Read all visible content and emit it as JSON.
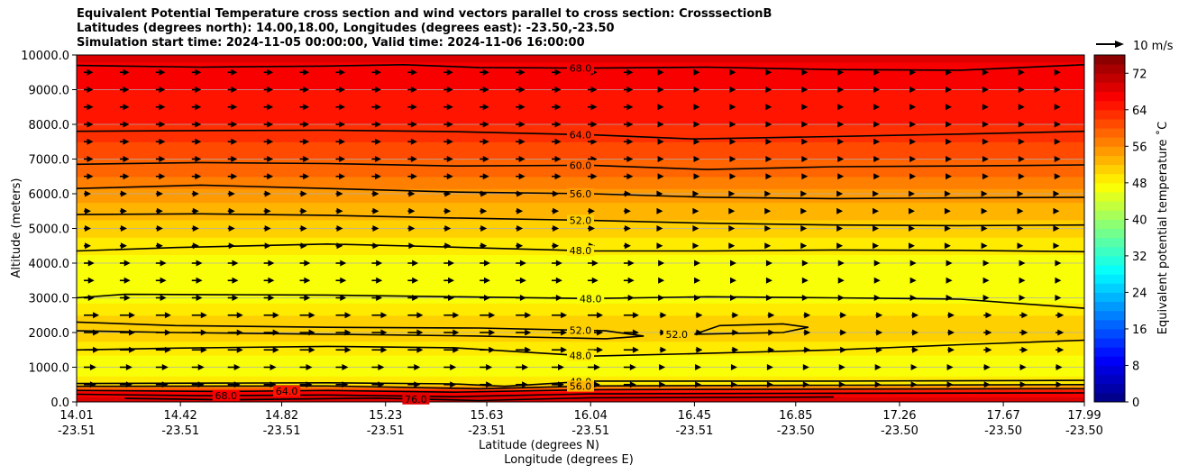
{
  "titles": [
    "Equivalent Potential Temperature cross section and wind vectors parallel to cross section: CrosssectionB",
    "Latitudes (degrees north): 14.00,18.00, Longitudes (degrees east): -23.50,-23.50",
    "Simulation start time: 2024-11-05 00:00:00, Valid time: 2024-11-06 16:00:00"
  ],
  "chart_data": {
    "type": "heatmap",
    "ylabel": "Altitude (meters)",
    "xlabel_lat": "Latitude (degrees N)",
    "xlabel_lon": "Longitude (degrees E)",
    "xlim": [
      14.01,
      17.99
    ],
    "ylim": [
      0,
      10000
    ],
    "grid": "horizontal",
    "x_ticks": [
      {
        "lat": "14.01",
        "lon": "-23.51",
        "v": 14.01
      },
      {
        "lat": "14.42",
        "lon": "-23.51",
        "v": 14.42
      },
      {
        "lat": "14.82",
        "lon": "-23.51",
        "v": 14.82
      },
      {
        "lat": "15.23",
        "lon": "-23.51",
        "v": 15.23
      },
      {
        "lat": "15.63",
        "lon": "-23.51",
        "v": 15.63
      },
      {
        "lat": "16.04",
        "lon": "-23.51",
        "v": 16.04
      },
      {
        "lat": "16.45",
        "lon": "-23.51",
        "v": 16.45
      },
      {
        "lat": "16.85",
        "lon": "-23.50",
        "v": 16.85
      },
      {
        "lat": "17.26",
        "lon": "-23.50",
        "v": 17.26
      },
      {
        "lat": "17.67",
        "lon": "-23.50",
        "v": 17.67
      },
      {
        "lat": "17.99",
        "lon": "-23.50",
        "v": 17.99
      }
    ],
    "y_ticks": [
      "0.0",
      "1000.0",
      "2000.0",
      "3000.0",
      "4000.0",
      "5000.0",
      "6000.0",
      "7000.0",
      "8000.0",
      "9000.0",
      "10000.0"
    ],
    "colorbar": {
      "label": "Equivalent potential temperature $^\\circ$C",
      "label_text": "Equivalent potential temperature ˚C",
      "min": 0,
      "max": 76,
      "step": 2,
      "ticks": [
        "0",
        "8",
        "16",
        "24",
        "32",
        "40",
        "48",
        "56",
        "64",
        "72"
      ]
    },
    "quiver_key": {
      "label": "10 m/s",
      "speed": 10
    },
    "theta_e_profile": [
      {
        "z": 0,
        "v": 70
      },
      {
        "z": 300,
        "v": 66
      },
      {
        "z": 500,
        "v": 50
      },
      {
        "z": 1000,
        "v": 46
      },
      {
        "z": 1500,
        "v": 49
      },
      {
        "z": 2000,
        "v": 51
      },
      {
        "z": 2500,
        "v": 50
      },
      {
        "z": 3000,
        "v": 47
      },
      {
        "z": 4000,
        "v": 47
      },
      {
        "z": 4500,
        "v": 49
      },
      {
        "z": 5000,
        "v": 51
      },
      {
        "z": 5500,
        "v": 53
      },
      {
        "z": 6000,
        "v": 55
      },
      {
        "z": 6500,
        "v": 58
      },
      {
        "z": 7000,
        "v": 60
      },
      {
        "z": 7500,
        "v": 62
      },
      {
        "z": 8000,
        "v": 64
      },
      {
        "z": 9000,
        "v": 66
      },
      {
        "z": 9800,
        "v": 68
      },
      {
        "z": 10000,
        "v": 69
      }
    ],
    "contours": [
      {
        "label": "68.0",
        "label_x": 16.0,
        "pts": [
          [
            14.01,
            9700
          ],
          [
            14.5,
            9650
          ],
          [
            15.0,
            9680
          ],
          [
            15.3,
            9720
          ],
          [
            15.6,
            9640
          ],
          [
            16.04,
            9620
          ],
          [
            16.5,
            9650
          ],
          [
            17.0,
            9580
          ],
          [
            17.5,
            9560
          ],
          [
            17.99,
            9720
          ]
        ]
      },
      {
        "label": "64.0",
        "label_x": 16.0,
        "pts": [
          [
            14.01,
            7800
          ],
          [
            14.5,
            7820
          ],
          [
            15.0,
            7830
          ],
          [
            15.5,
            7790
          ],
          [
            16.04,
            7700
          ],
          [
            16.45,
            7580
          ],
          [
            17.0,
            7650
          ],
          [
            17.5,
            7720
          ],
          [
            17.99,
            7800
          ]
        ]
      },
      {
        "label": "60.0",
        "label_x": 16.0,
        "pts": [
          [
            14.01,
            6850
          ],
          [
            14.5,
            6900
          ],
          [
            15.0,
            6870
          ],
          [
            15.5,
            6800
          ],
          [
            16.04,
            6820
          ],
          [
            16.5,
            6700
          ],
          [
            17.0,
            6780
          ],
          [
            17.5,
            6800
          ],
          [
            17.99,
            6830
          ]
        ]
      },
      {
        "label": "56.0",
        "label_x": 16.0,
        "pts": [
          [
            14.01,
            6150
          ],
          [
            14.5,
            6250
          ],
          [
            15.0,
            6150
          ],
          [
            15.5,
            6050
          ],
          [
            16.04,
            6000
          ],
          [
            16.5,
            5900
          ],
          [
            17.0,
            5860
          ],
          [
            17.5,
            5880
          ],
          [
            17.99,
            5900
          ]
        ]
      },
      {
        "label": "52.0",
        "label_x": 16.0,
        "pts": [
          [
            14.01,
            5400
          ],
          [
            14.5,
            5420
          ],
          [
            15.0,
            5380
          ],
          [
            15.5,
            5300
          ],
          [
            16.04,
            5230
          ],
          [
            16.5,
            5150
          ],
          [
            17.0,
            5100
          ],
          [
            17.5,
            5080
          ],
          [
            17.99,
            5100
          ]
        ]
      },
      {
        "label": "48.0",
        "label_x": 16.0,
        "pts": [
          [
            14.01,
            4350
          ],
          [
            14.4,
            4450
          ],
          [
            15.0,
            4550
          ],
          [
            15.4,
            4480
          ],
          [
            16.04,
            4350
          ],
          [
            16.5,
            4350
          ],
          [
            17.0,
            4380
          ],
          [
            17.5,
            4370
          ],
          [
            17.99,
            4330
          ]
        ]
      },
      {
        "label": "48.0",
        "label_x": 16.04,
        "pts": [
          [
            14.01,
            3000
          ],
          [
            14.2,
            3100
          ],
          [
            15.0,
            3080
          ],
          [
            15.5,
            3030
          ],
          [
            16.04,
            2980
          ],
          [
            16.5,
            3030
          ],
          [
            17.0,
            3000
          ],
          [
            17.5,
            2960
          ],
          [
            17.99,
            2700
          ]
        ]
      },
      {
        "label": "52.0",
        "label_x": 16.0,
        "pts": [
          [
            14.01,
            2300
          ],
          [
            14.4,
            2200
          ],
          [
            15.0,
            2150
          ],
          [
            15.6,
            2130
          ],
          [
            16.1,
            2050
          ],
          [
            16.25,
            1900
          ],
          [
            16.1,
            1820
          ],
          [
            15.6,
            1900
          ],
          [
            15.0,
            1950
          ],
          [
            14.4,
            2000
          ],
          [
            14.01,
            2050
          ]
        ]
      },
      {
        "label": "52.0",
        "label_x": 16.38,
        "pts": [
          [
            16.45,
            1950
          ],
          [
            16.55,
            2200
          ],
          [
            16.8,
            2250
          ],
          [
            16.9,
            2150
          ],
          [
            16.8,
            2000
          ],
          [
            16.45,
            1950
          ]
        ]
      },
      {
        "label": "48.0",
        "label_x": 16.0,
        "pts": [
          [
            14.01,
            1500
          ],
          [
            14.4,
            1550
          ],
          [
            15.0,
            1600
          ],
          [
            15.5,
            1560
          ],
          [
            16.04,
            1320
          ],
          [
            16.5,
            1400
          ],
          [
            17.0,
            1500
          ],
          [
            17.5,
            1650
          ],
          [
            17.99,
            1780
          ]
        ]
      },
      {
        "label": "48.0",
        "label_x": 16.0,
        "pts": [
          [
            14.01,
            530
          ],
          [
            15.0,
            550
          ],
          [
            15.5,
            520
          ],
          [
            15.7,
            450
          ],
          [
            16.04,
            600
          ],
          [
            17.0,
            600
          ],
          [
            17.99,
            620
          ]
        ]
      },
      {
        "label": "56.0",
        "label_x": 16.0,
        "pts": [
          [
            14.01,
            450
          ],
          [
            15.0,
            460
          ],
          [
            15.6,
            380
          ],
          [
            16.04,
            460
          ],
          [
            17.0,
            480
          ],
          [
            17.99,
            500
          ]
        ]
      },
      {
        "label": "64.0",
        "label_x": 14.84,
        "pts": [
          [
            14.01,
            330
          ],
          [
            14.6,
            300
          ],
          [
            15.0,
            330
          ],
          [
            15.5,
            280
          ],
          [
            16.04,
            350
          ],
          [
            17.0,
            370
          ],
          [
            17.99,
            380
          ]
        ]
      },
      {
        "label": "68.0",
        "label_x": 14.6,
        "pts": [
          [
            14.01,
            220
          ],
          [
            14.5,
            180
          ],
          [
            15.0,
            200
          ],
          [
            15.5,
            150
          ],
          [
            16.04,
            230
          ],
          [
            17.0,
            250
          ],
          [
            17.99,
            260
          ]
        ]
      },
      {
        "label": "76.0",
        "label_x": 15.35,
        "pts": [
          [
            14.2,
            100
          ],
          [
            14.6,
            60
          ],
          [
            15.2,
            110
          ],
          [
            15.6,
            40
          ],
          [
            16.04,
            120
          ],
          [
            17.0,
            140
          ]
        ]
      }
    ]
  }
}
